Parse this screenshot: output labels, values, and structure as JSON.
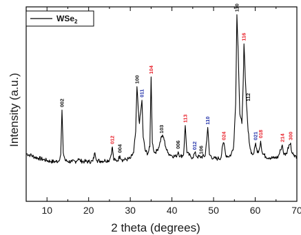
{
  "chart_data": {
    "type": "line",
    "title": "",
    "xlabel": "2 theta (degrees)",
    "ylabel": "Intensity (a.u.)",
    "xlim": [
      5,
      70
    ],
    "ylim": [
      0,
      100
    ],
    "x_ticks": [
      10,
      20,
      30,
      40,
      50,
      60,
      70
    ],
    "y_ticks_shown": false,
    "grid": false,
    "legend": {
      "placement": "top-left",
      "entries": [
        {
          "name": "WSe",
          "subscript": "2",
          "line_color": "#000000"
        }
      ]
    },
    "series": [
      {
        "name": "WSe2",
        "color": "#000000",
        "baseline": 22,
        "points": [
          [
            5.0,
            24.5
          ],
          [
            6.0,
            23.8
          ],
          [
            7.0,
            22.8
          ],
          [
            8.0,
            22.2
          ],
          [
            9.0,
            21.6
          ],
          [
            10.0,
            21.0
          ],
          [
            11.0,
            20.5
          ],
          [
            12.0,
            20.4
          ],
          [
            12.8,
            20.8
          ],
          [
            13.3,
            24.0
          ],
          [
            13.6,
            47.0
          ],
          [
            13.9,
            25.0
          ],
          [
            14.4,
            21.0
          ],
          [
            15.0,
            20.6
          ],
          [
            16.0,
            20.3
          ],
          [
            17.0,
            20.6
          ],
          [
            17.5,
            22.0
          ],
          [
            18.0,
            20.8
          ],
          [
            19.0,
            20.5
          ],
          [
            20.0,
            20.4
          ],
          [
            21.0,
            20.6
          ],
          [
            21.5,
            25.0
          ],
          [
            22.0,
            21.0
          ],
          [
            23.0,
            20.7
          ],
          [
            24.0,
            21.0
          ],
          [
            25.0,
            21.2
          ],
          [
            25.4,
            24.0
          ],
          [
            25.7,
            28.0
          ],
          [
            26.0,
            21.5
          ],
          [
            26.5,
            21.0
          ],
          [
            27.0,
            21.0
          ],
          [
            27.5,
            23.5
          ],
          [
            28.0,
            21.3
          ],
          [
            29.0,
            21.5
          ],
          [
            30.0,
            22.0
          ],
          [
            30.8,
            25.0
          ],
          [
            31.3,
            36.0
          ],
          [
            31.6,
            59.0
          ],
          [
            31.9,
            48.0
          ],
          [
            32.2,
            40.0
          ],
          [
            32.5,
            46.0
          ],
          [
            32.8,
            52.0
          ],
          [
            33.1,
            33.0
          ],
          [
            33.6,
            26.0
          ],
          [
            34.2,
            24.5
          ],
          [
            34.7,
            28.0
          ],
          [
            35.0,
            64.0
          ],
          [
            35.3,
            30.0
          ],
          [
            35.8,
            25.0
          ],
          [
            36.4,
            26.0
          ],
          [
            37.0,
            29.0
          ],
          [
            37.5,
            33.5
          ],
          [
            38.0,
            33.0
          ],
          [
            38.5,
            28.0
          ],
          [
            39.0,
            25.0
          ],
          [
            40.0,
            23.5
          ],
          [
            41.0,
            23.0
          ],
          [
            41.5,
            25.5
          ],
          [
            42.0,
            23.0
          ],
          [
            42.8,
            24.0
          ],
          [
            43.2,
            39.0
          ],
          [
            43.6,
            25.0
          ],
          [
            44.5,
            23.0
          ],
          [
            45.0,
            22.5
          ],
          [
            45.5,
            25.0
          ],
          [
            46.0,
            23.0
          ],
          [
            47.0,
            22.8
          ],
          [
            48.0,
            23.5
          ],
          [
            48.6,
            38.0
          ],
          [
            49.0,
            24.0
          ],
          [
            50.0,
            22.0
          ],
          [
            51.0,
            22.0
          ],
          [
            51.8,
            22.5
          ],
          [
            52.2,
            29.0
          ],
          [
            52.5,
            30.0
          ],
          [
            52.9,
            24.0
          ],
          [
            53.5,
            23.0
          ],
          [
            54.2,
            24.0
          ],
          [
            54.8,
            28.0
          ],
          [
            55.3,
            50.0
          ],
          [
            55.6,
            96.0
          ],
          [
            55.9,
            78.0
          ],
          [
            56.3,
            45.0
          ],
          [
            56.8,
            40.0
          ],
          [
            57.1,
            60.0
          ],
          [
            57.3,
            81.0
          ],
          [
            57.6,
            64.0
          ],
          [
            57.9,
            50.0
          ],
          [
            58.3,
            36.0
          ],
          [
            58.8,
            27.0
          ],
          [
            59.3,
            24.0
          ],
          [
            59.7,
            25.0
          ],
          [
            60.1,
            30.0
          ],
          [
            60.5,
            25.0
          ],
          [
            61.0,
            27.0
          ],
          [
            61.3,
            31.0
          ],
          [
            61.7,
            25.0
          ],
          [
            62.5,
            23.0
          ],
          [
            63.5,
            22.5
          ],
          [
            64.5,
            22.2
          ],
          [
            65.5,
            22.8
          ],
          [
            66.1,
            26.5
          ],
          [
            66.5,
            29.0
          ],
          [
            66.9,
            24.0
          ],
          [
            67.5,
            24.5
          ],
          [
            68.1,
            29.0
          ],
          [
            68.5,
            30.0
          ],
          [
            68.8,
            25.0
          ],
          [
            69.3,
            24.0
          ],
          [
            70.0,
            23.0
          ]
        ]
      }
    ],
    "annotations": [
      {
        "text": "002",
        "x": 13.6,
        "color": "#111111"
      },
      {
        "text": "012",
        "x": 25.7,
        "color": "#e8202a"
      },
      {
        "text": "004",
        "x": 27.5,
        "color": "#111111"
      },
      {
        "text": "100",
        "x": 31.6,
        "color": "#111111"
      },
      {
        "text": "011",
        "x": 32.8,
        "color": "#1f2fa8"
      },
      {
        "text": "104",
        "x": 35.0,
        "color": "#e8202a"
      },
      {
        "text": "103",
        "x": 37.5,
        "color": "#111111"
      },
      {
        "text": "006",
        "x": 41.5,
        "color": "#111111"
      },
      {
        "text": "113",
        "x": 43.2,
        "color": "#e8202a"
      },
      {
        "text": "012",
        "x": 45.4,
        "color": "#1f2fa8"
      },
      {
        "text": "106",
        "x": 47.0,
        "color": "#111111"
      },
      {
        "text": "110",
        "x": 48.6,
        "color": "#1f2fa8"
      },
      {
        "text": "024",
        "x": 52.5,
        "color": "#e8202a"
      },
      {
        "text": "110",
        "x": 55.6,
        "color": "#111111"
      },
      {
        "text": "116",
        "x": 57.3,
        "color": "#e8202a"
      },
      {
        "text": "112",
        "x": 58.3,
        "color": "#111111"
      },
      {
        "text": "021",
        "x": 60.1,
        "color": "#1f2fa8"
      },
      {
        "text": "018",
        "x": 61.3,
        "color": "#e8202a"
      },
      {
        "text": "214",
        "x": 66.5,
        "color": "#e8202a"
      },
      {
        "text": "300",
        "x": 68.5,
        "color": "#e8202a"
      }
    ]
  }
}
